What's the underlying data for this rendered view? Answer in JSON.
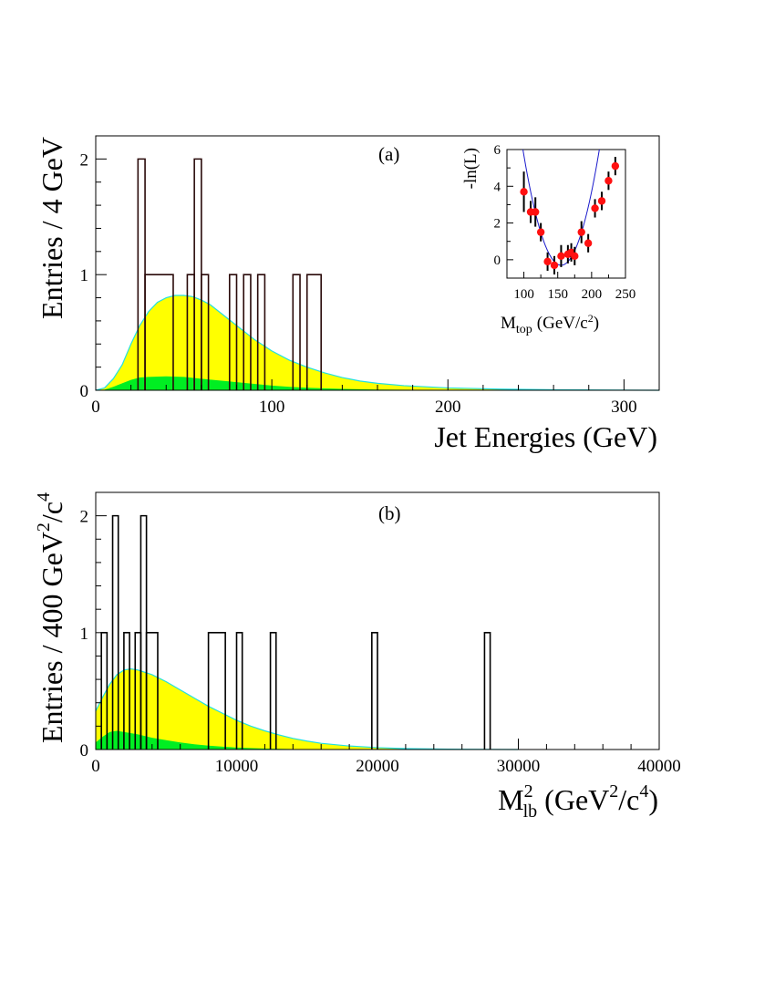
{
  "colors": {
    "yellow_fill": "#ffff00",
    "green_fill": "#00ee22",
    "curve_line": "#22e0e0",
    "data_hist": "#2a0a0a",
    "inset_points": "#ff1010",
    "inset_fit": "#1a1acc"
  },
  "chart_data": [
    {
      "type": "histogram",
      "panel_label": "(a)",
      "xlabel": "Jet Energies (GeV)",
      "ylabel": "Entries / 4 GeV",
      "xlim": [
        0,
        320
      ],
      "ylim": [
        0,
        2.2
      ],
      "x_ticks": [
        "0",
        "100",
        "200",
        "300"
      ],
      "y_ticks": [
        "0",
        "1",
        "2"
      ],
      "bin_width": 4,
      "histogram_bins": [
        {
          "x0": 24,
          "x1": 28,
          "count": 2
        },
        {
          "x0": 28,
          "x1": 44,
          "count": 1
        },
        {
          "x0": 52,
          "x1": 56,
          "count": 1
        },
        {
          "x0": 56,
          "x1": 60,
          "count": 2
        },
        {
          "x0": 60,
          "x1": 64,
          "count": 1
        },
        {
          "x0": 76,
          "x1": 80,
          "count": 1
        },
        {
          "x0": 84,
          "x1": 88,
          "count": 1
        },
        {
          "x0": 92,
          "x1": 96,
          "count": 1
        },
        {
          "x0": 112,
          "x1": 116,
          "count": 1
        },
        {
          "x0": 120,
          "x1": 128,
          "count": 1
        }
      ],
      "signal_plus_background": [
        [
          0,
          0
        ],
        [
          5,
          0.02
        ],
        [
          10,
          0.1
        ],
        [
          15,
          0.22
        ],
        [
          20,
          0.4
        ],
        [
          25,
          0.56
        ],
        [
          30,
          0.68
        ],
        [
          35,
          0.76
        ],
        [
          40,
          0.8
        ],
        [
          45,
          0.82
        ],
        [
          50,
          0.82
        ],
        [
          55,
          0.81
        ],
        [
          60,
          0.78
        ],
        [
          65,
          0.74
        ],
        [
          70,
          0.68
        ],
        [
          75,
          0.62
        ],
        [
          80,
          0.56
        ],
        [
          85,
          0.5
        ],
        [
          90,
          0.44
        ],
        [
          95,
          0.39
        ],
        [
          100,
          0.34
        ],
        [
          110,
          0.26
        ],
        [
          120,
          0.2
        ],
        [
          130,
          0.15
        ],
        [
          140,
          0.11
        ],
        [
          150,
          0.08
        ],
        [
          160,
          0.06
        ],
        [
          175,
          0.04
        ],
        [
          200,
          0.02
        ],
        [
          230,
          0.01
        ],
        [
          260,
          0.004
        ],
        [
          300,
          0.001
        ],
        [
          320,
          0
        ]
      ],
      "background": [
        [
          0,
          0
        ],
        [
          5,
          0.005
        ],
        [
          10,
          0.03
        ],
        [
          15,
          0.06
        ],
        [
          20,
          0.09
        ],
        [
          25,
          0.11
        ],
        [
          30,
          0.115
        ],
        [
          40,
          0.12
        ],
        [
          50,
          0.115
        ],
        [
          60,
          0.1
        ],
        [
          70,
          0.085
        ],
        [
          80,
          0.07
        ],
        [
          90,
          0.055
        ],
        [
          100,
          0.04
        ],
        [
          110,
          0.03
        ],
        [
          120,
          0.022
        ],
        [
          140,
          0.012
        ],
        [
          160,
          0.006
        ],
        [
          200,
          0.002
        ],
        [
          240,
          0
        ]
      ],
      "inset": {
        "ylabel": "-ln(L)",
        "xlabel_main": "M",
        "xlabel_sub": "top",
        "xlabel_unit": "(GeV/c",
        "xlabel_unit_sup": "2",
        "xlabel_unit_end": ")",
        "xlim": [
          75,
          250
        ],
        "ylim": [
          -1,
          6
        ],
        "x_ticks": [
          "100",
          "150",
          "200",
          "250"
        ],
        "y_ticks": [
          "0",
          "2",
          "4",
          "6"
        ],
        "points": [
          {
            "x": 100,
            "y": 3.7,
            "err": 1.1
          },
          {
            "x": 110,
            "y": 2.6,
            "err": 0.6
          },
          {
            "x": 117,
            "y": 2.6,
            "err": 0.8
          },
          {
            "x": 125,
            "y": 1.5,
            "err": 0.5
          },
          {
            "x": 135,
            "y": -0.1,
            "err": 0.5
          },
          {
            "x": 145,
            "y": -0.3,
            "err": 0.5
          },
          {
            "x": 155,
            "y": 0.2,
            "err": 0.6
          },
          {
            "x": 165,
            "y": 0.3,
            "err": 0.5
          },
          {
            "x": 170,
            "y": 0.4,
            "err": 0.5
          },
          {
            "x": 175,
            "y": 0.2,
            "err": 0.5
          },
          {
            "x": 185,
            "y": 1.5,
            "err": 0.6
          },
          {
            "x": 195,
            "y": 0.9,
            "err": 0.5
          },
          {
            "x": 205,
            "y": 2.8,
            "err": 0.5
          },
          {
            "x": 215,
            "y": 3.2,
            "err": 0.5
          },
          {
            "x": 225,
            "y": 4.3,
            "err": 0.5
          },
          {
            "x": 235,
            "y": 5.1,
            "err": 0.5
          }
        ],
        "fit_center": 155,
        "fit_curvature": 0.00198
      }
    },
    {
      "type": "histogram",
      "panel_label": "(b)",
      "xlabel_main": "M",
      "xlabel_sup": "2",
      "xlabel_sub": "lb",
      "xlabel_unit_open": "(GeV",
      "xlabel_unit_sup1": "2",
      "xlabel_unit_mid": "/c",
      "xlabel_unit_sup2": "4",
      "xlabel_unit_close": ")",
      "ylabel_main": "Entries / 400 GeV",
      "ylabel_sup1": "2",
      "ylabel_mid": "/c",
      "ylabel_sup2": "4",
      "xlim": [
        0,
        40000
      ],
      "ylim": [
        0,
        2.2
      ],
      "x_ticks": [
        "0",
        "10000",
        "20000",
        "30000",
        "40000"
      ],
      "y_ticks": [
        "0",
        "1",
        "2"
      ],
      "bin_width": 400,
      "histogram_bins": [
        {
          "x0": 400,
          "x1": 800,
          "count": 1
        },
        {
          "x0": 1200,
          "x1": 1600,
          "count": 2
        },
        {
          "x0": 2000,
          "x1": 2400,
          "count": 1
        },
        {
          "x0": 2800,
          "x1": 3200,
          "count": 1
        },
        {
          "x0": 3200,
          "x1": 3600,
          "count": 2
        },
        {
          "x0": 3600,
          "x1": 4400,
          "count": 1
        },
        {
          "x0": 8000,
          "x1": 9200,
          "count": 1
        },
        {
          "x0": 10000,
          "x1": 10400,
          "count": 1
        },
        {
          "x0": 12400,
          "x1": 12800,
          "count": 1
        },
        {
          "x0": 19600,
          "x1": 20000,
          "count": 1
        },
        {
          "x0": 27600,
          "x1": 28000,
          "count": 1
        }
      ],
      "signal_plus_background": [
        [
          0,
          0.33
        ],
        [
          500,
          0.45
        ],
        [
          1000,
          0.56
        ],
        [
          1500,
          0.64
        ],
        [
          2000,
          0.68
        ],
        [
          2500,
          0.69
        ],
        [
          3000,
          0.68
        ],
        [
          4000,
          0.64
        ],
        [
          5000,
          0.58
        ],
        [
          6000,
          0.51
        ],
        [
          7000,
          0.44
        ],
        [
          8000,
          0.37
        ],
        [
          9000,
          0.31
        ],
        [
          10000,
          0.25
        ],
        [
          11000,
          0.2
        ],
        [
          12000,
          0.16
        ],
        [
          13000,
          0.125
        ],
        [
          14000,
          0.095
        ],
        [
          15000,
          0.072
        ],
        [
          16000,
          0.053
        ],
        [
          18000,
          0.03
        ],
        [
          20000,
          0.016
        ],
        [
          22000,
          0.008
        ],
        [
          25000,
          0.003
        ],
        [
          28000,
          0.001
        ],
        [
          30000,
          0
        ]
      ],
      "background": [
        [
          0,
          0.06
        ],
        [
          500,
          0.11
        ],
        [
          1000,
          0.15
        ],
        [
          1500,
          0.16
        ],
        [
          2000,
          0.15
        ],
        [
          3000,
          0.13
        ],
        [
          4000,
          0.1
        ],
        [
          5000,
          0.08
        ],
        [
          6000,
          0.06
        ],
        [
          7000,
          0.045
        ],
        [
          8000,
          0.033
        ],
        [
          9000,
          0.024
        ],
        [
          10000,
          0.017
        ],
        [
          12000,
          0.008
        ],
        [
          14000,
          0.004
        ],
        [
          16000,
          0.002
        ],
        [
          20000,
          0
        ]
      ]
    }
  ]
}
